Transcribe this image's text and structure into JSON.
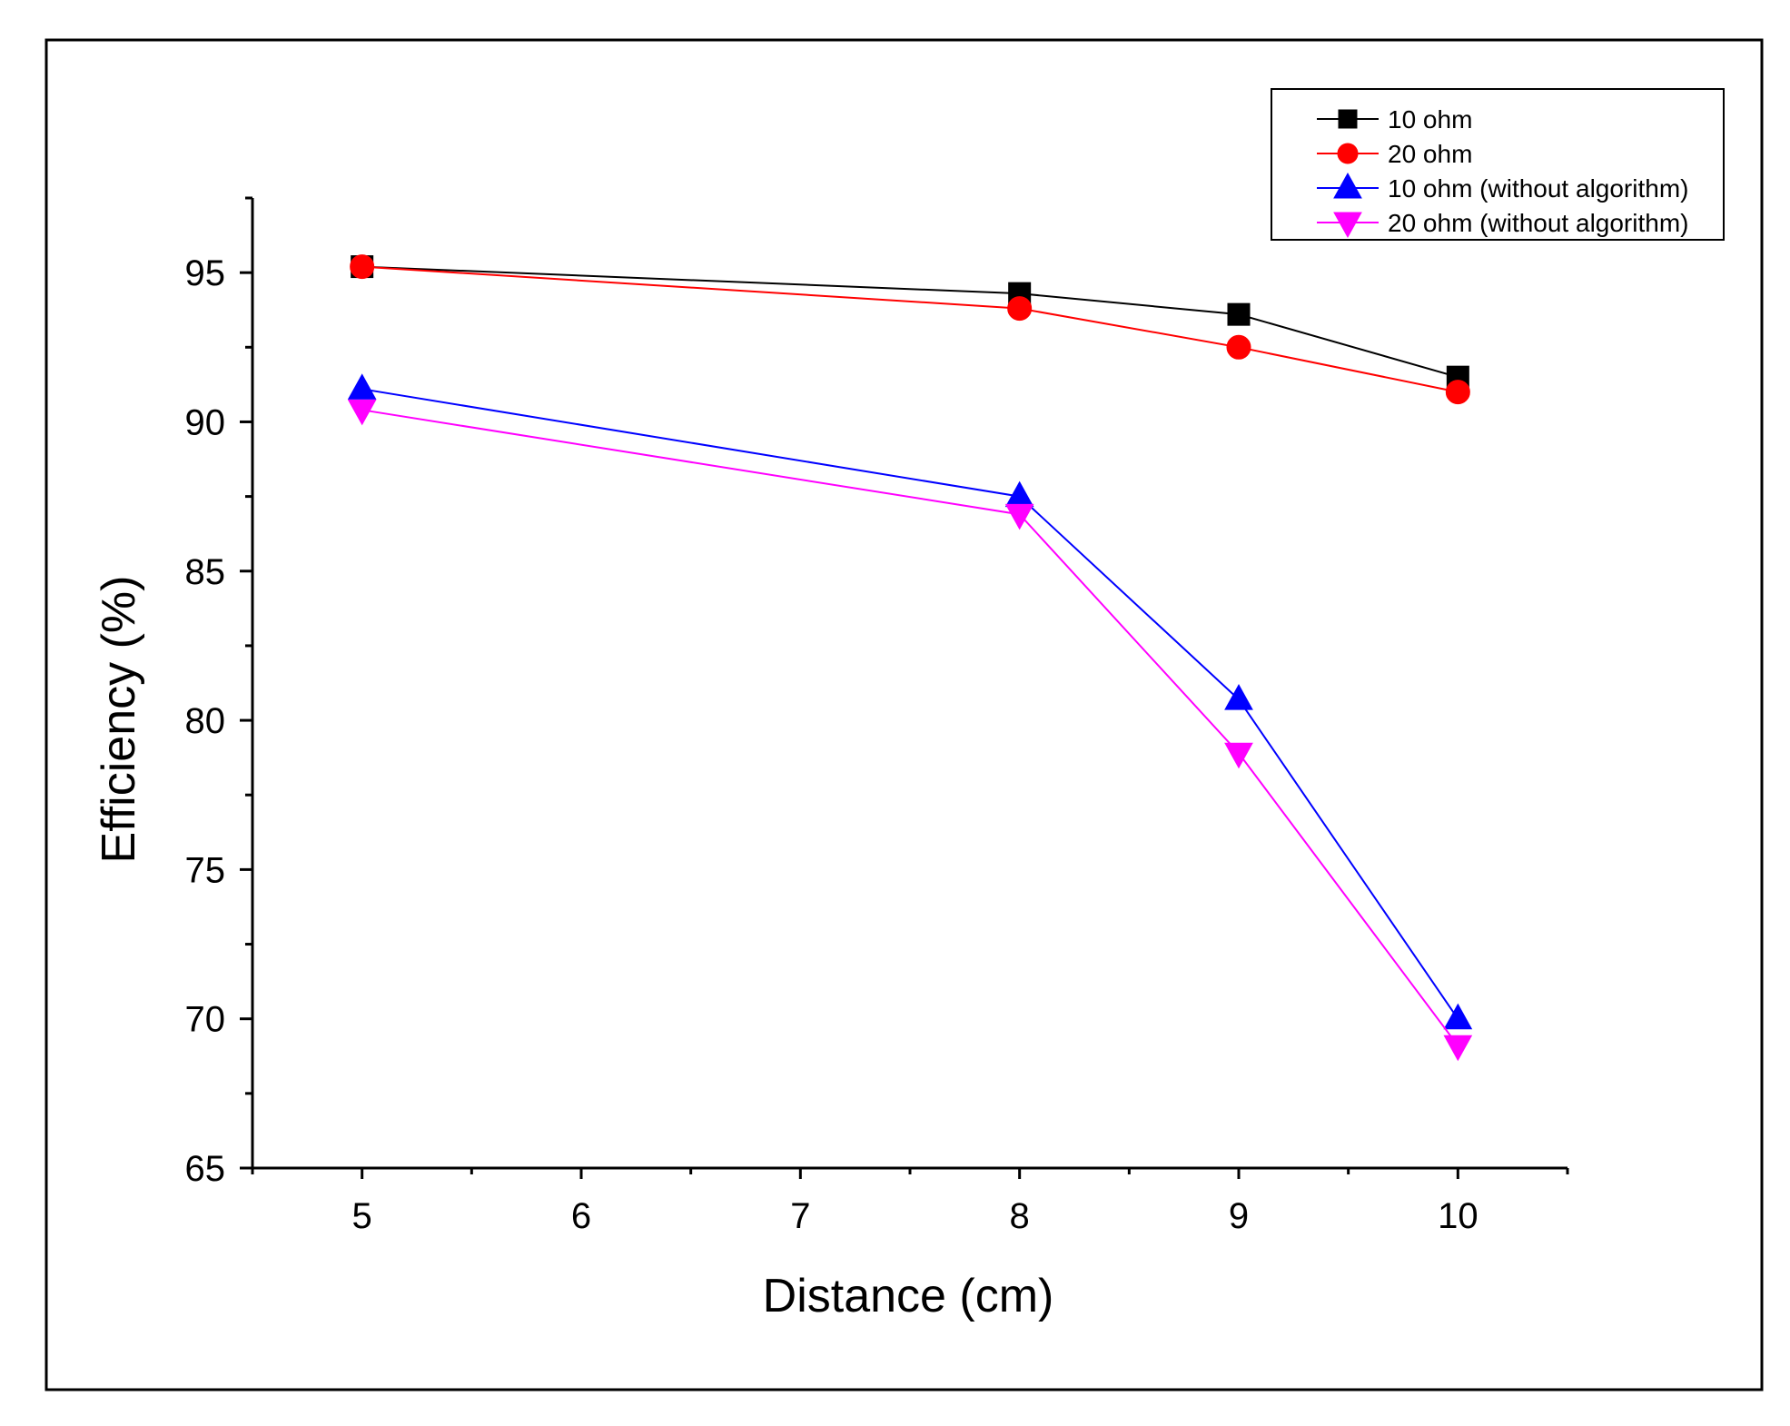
{
  "chart_data": {
    "type": "line",
    "title": "",
    "xlabel": "Distance (cm)",
    "ylabel": "Efficiency (%)",
    "xlim": [
      4.5,
      10.5
    ],
    "ylim": [
      65,
      97.5
    ],
    "xticks": [
      5,
      6,
      7,
      8,
      9,
      10
    ],
    "xtick_labels": [
      "5",
      "6",
      "7",
      "8",
      "9",
      "10"
    ],
    "yticks": [
      65,
      70,
      75,
      80,
      85,
      90,
      95
    ],
    "ytick_labels": [
      "65",
      "70",
      "75",
      "80",
      "85",
      "90",
      "95"
    ],
    "grid": false,
    "legend_position": "top-right",
    "x": [
      5,
      8,
      9,
      10
    ],
    "series": [
      {
        "name": "10 ohm",
        "color": "#000000",
        "marker": "square",
        "values": [
          95.2,
          94.3,
          93.6,
          91.5
        ]
      },
      {
        "name": "20 ohm",
        "color": "#ff0000",
        "marker": "circle",
        "values": [
          95.2,
          93.8,
          92.5,
          91.0
        ]
      },
      {
        "name": "10 ohm (without algorithm)",
        "color": "#0000ff",
        "marker": "triangle-up",
        "values": [
          91.1,
          87.5,
          80.7,
          70.0
        ]
      },
      {
        "name": "20 ohm (without algorithm)",
        "color": "#ff00ff",
        "marker": "triangle-down",
        "values": [
          90.4,
          86.9,
          78.9,
          69.1
        ]
      }
    ]
  }
}
